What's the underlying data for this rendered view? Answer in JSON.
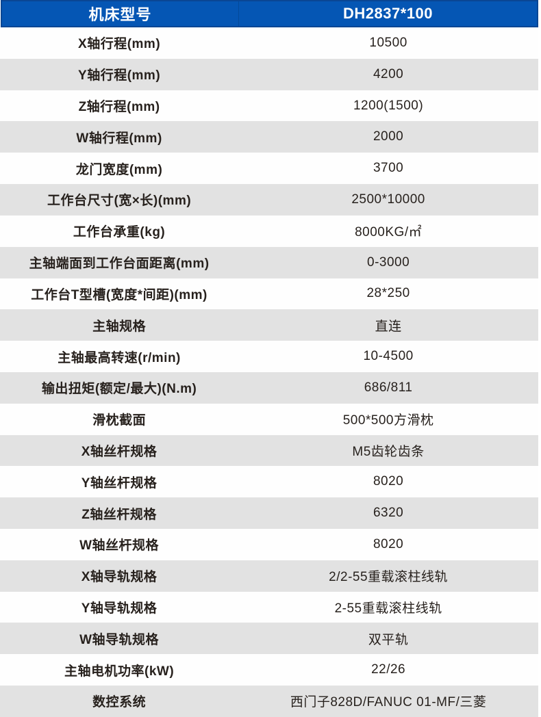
{
  "colors": {
    "header_bg": "#0556b4",
    "header_border": "#0a4694",
    "header_text": "#ffffff",
    "row_alt_bg": "#e2e2e2",
    "text": "#27211d"
  },
  "table": {
    "header": {
      "model_label": "机床型号",
      "model_value": "DH2837*100"
    },
    "rows": [
      {
        "label": "X轴行程(mm)",
        "value": "10500"
      },
      {
        "label": "Y轴行程(mm)",
        "value": "4200"
      },
      {
        "label": "Z轴行程(mm)",
        "value": "1200(1500)"
      },
      {
        "label": "W轴行程(mm)",
        "value": "2000"
      },
      {
        "label": "龙门宽度(mm)",
        "value": "3700"
      },
      {
        "label": "工作台尺寸(宽×长)(mm)",
        "value": "2500*10000"
      },
      {
        "label": "工作台承重(kg)",
        "value": "8000KG/㎡"
      },
      {
        "label": "主轴端面到工作台面距离(mm)",
        "value": "0-3000"
      },
      {
        "label": "工作台T型槽(宽度*间距)(mm)",
        "value": "28*250"
      },
      {
        "label": "主轴规格",
        "value": "直连"
      },
      {
        "label": "主轴最高转速(r/min)",
        "value": "10-4500"
      },
      {
        "label": "输出扭矩(额定/最大)(N.m)",
        "value": "686/811"
      },
      {
        "label": "滑枕截面",
        "value": "500*500方滑枕"
      },
      {
        "label": "X轴丝杆规格",
        "value": "M5齿轮齿条"
      },
      {
        "label": "Y轴丝杆规格",
        "value": "8020"
      },
      {
        "label": "Z轴丝杆规格",
        "value": "6320"
      },
      {
        "label": "W轴丝杆规格",
        "value": "8020"
      },
      {
        "label": "X轴导轨规格",
        "value": "2/2-55重载滚柱线轨"
      },
      {
        "label": "Y轴导轨规格",
        "value": "2-55重载滚柱线轨"
      },
      {
        "label": "W轴导轨规格",
        "value": "双平轨"
      },
      {
        "label": "主轴电机功率(kW)",
        "value": "22/26"
      },
      {
        "label": "数控系统",
        "value": "西门子828D/FANUC 01-MF/三菱"
      }
    ]
  }
}
